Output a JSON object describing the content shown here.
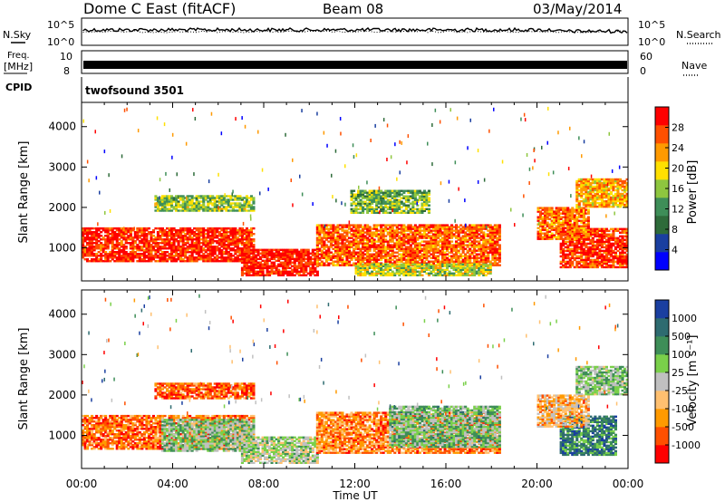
{
  "header": {
    "title": "Dome C East (fitACF)",
    "beam": "Beam 08",
    "date": "03/May/2014"
  },
  "status_panels": {
    "nsky_label": "N.Sky",
    "nsearch_label": "N.Search",
    "noise_ticks": [
      "10^5",
      "10^0"
    ],
    "freq_label_line1": "Freq.",
    "freq_label_line2": "[MHz]",
    "freq_ticks": [
      "10",
      "8"
    ],
    "nave_label": "Nave",
    "nave_ticks": [
      "60",
      "0"
    ],
    "cpid_label": "CPID",
    "cpid_value": "twofsound 3501"
  },
  "chart_data": [
    {
      "type": "heatmap",
      "panel": "power",
      "ylabel": "Slant Range [km]",
      "xlabel": "",
      "xticks": [
        "00:00",
        "04:00",
        "08:00",
        "12:00",
        "16:00",
        "20:00",
        "00:00"
      ],
      "yticks": [
        1000,
        2000,
        3000,
        4000
      ],
      "ylim": [
        180,
        4600
      ],
      "xlim_hours": [
        0,
        24
      ],
      "colorbar": {
        "label": "Power [dB]",
        "ticks": [
          "28",
          "24",
          "20",
          "16",
          "12",
          "8",
          "4"
        ],
        "colors": [
          "#0000ff",
          "#1a3fa0",
          "#2e6b3a",
          "#3e8e58",
          "#8ec63f",
          "#ffe000",
          "#ff9a00",
          "#ff5000",
          "#ff0000"
        ]
      },
      "bands": [
        {
          "t0": 0.0,
          "t1": 7.5,
          "r0": 650,
          "r1": 1500,
          "level": 0.92
        },
        {
          "t0": 7.0,
          "t1": 10.3,
          "r0": 300,
          "r1": 950,
          "level": 0.95
        },
        {
          "t0": 10.3,
          "t1": 18.4,
          "r0": 550,
          "r1": 1550,
          "level": 0.82
        },
        {
          "t0": 12.0,
          "t1": 18.0,
          "r0": 300,
          "r1": 600,
          "level": 0.55
        },
        {
          "t0": 21.0,
          "t1": 24.0,
          "r0": 500,
          "r1": 1450,
          "level": 0.9
        },
        {
          "t0": 20.0,
          "t1": 22.3,
          "r0": 1200,
          "r1": 2000,
          "level": 0.8
        },
        {
          "t0": 21.7,
          "t1": 24.0,
          "r0": 2000,
          "r1": 2700,
          "level": 0.7
        },
        {
          "t0": 3.2,
          "t1": 7.5,
          "r0": 1900,
          "r1": 2300,
          "level": 0.5
        },
        {
          "t0": 11.8,
          "t1": 15.2,
          "r0": 1850,
          "r1": 2400,
          "level": 0.45
        }
      ]
    },
    {
      "type": "heatmap",
      "panel": "velocity",
      "ylabel": "Slant Range [km]",
      "xlabel": "Time UT",
      "xticks": [
        "00:00",
        "04:00",
        "08:00",
        "12:00",
        "16:00",
        "20:00",
        "00:00"
      ],
      "yticks": [
        1000,
        2000,
        3000,
        4000
      ],
      "ylim": [
        180,
        4600
      ],
      "xlim_hours": [
        0,
        24
      ],
      "colorbar": {
        "label": "Velocity [m s⁻¹]",
        "ticks": [
          "1000",
          "500",
          "100",
          "25",
          "-25",
          "-100",
          "-500",
          "-1000"
        ],
        "colors": [
          "#ff0000",
          "#ff5000",
          "#ff9a00",
          "#ffc070",
          "#c0c0c0",
          "#7ad04a",
          "#3e8e58",
          "#2e6b70",
          "#1a3fa0"
        ]
      },
      "bands": [
        {
          "t0": 0.0,
          "t1": 7.5,
          "r0": 650,
          "r1": 1500,
          "level": 0.2
        },
        {
          "t0": 3.5,
          "t1": 7.5,
          "r0": 600,
          "r1": 1400,
          "level": 0.6
        },
        {
          "t0": 7.0,
          "t1": 10.3,
          "r0": 300,
          "r1": 950,
          "level": 0.55
        },
        {
          "t0": 10.3,
          "t1": 18.4,
          "r0": 550,
          "r1": 1550,
          "level": 0.25
        },
        {
          "t0": 13.5,
          "t1": 18.4,
          "r0": 700,
          "r1": 1700,
          "level": 0.62
        },
        {
          "t0": 21.0,
          "t1": 23.5,
          "r0": 500,
          "r1": 1450,
          "level": 0.78
        },
        {
          "t0": 20.0,
          "t1": 22.3,
          "r0": 1200,
          "r1": 2000,
          "level": 0.35
        },
        {
          "t0": 21.7,
          "t1": 24.0,
          "r0": 2000,
          "r1": 2700,
          "level": 0.6
        },
        {
          "t0": 3.2,
          "t1": 7.5,
          "r0": 1900,
          "r1": 2300,
          "level": 0.18
        }
      ]
    }
  ]
}
